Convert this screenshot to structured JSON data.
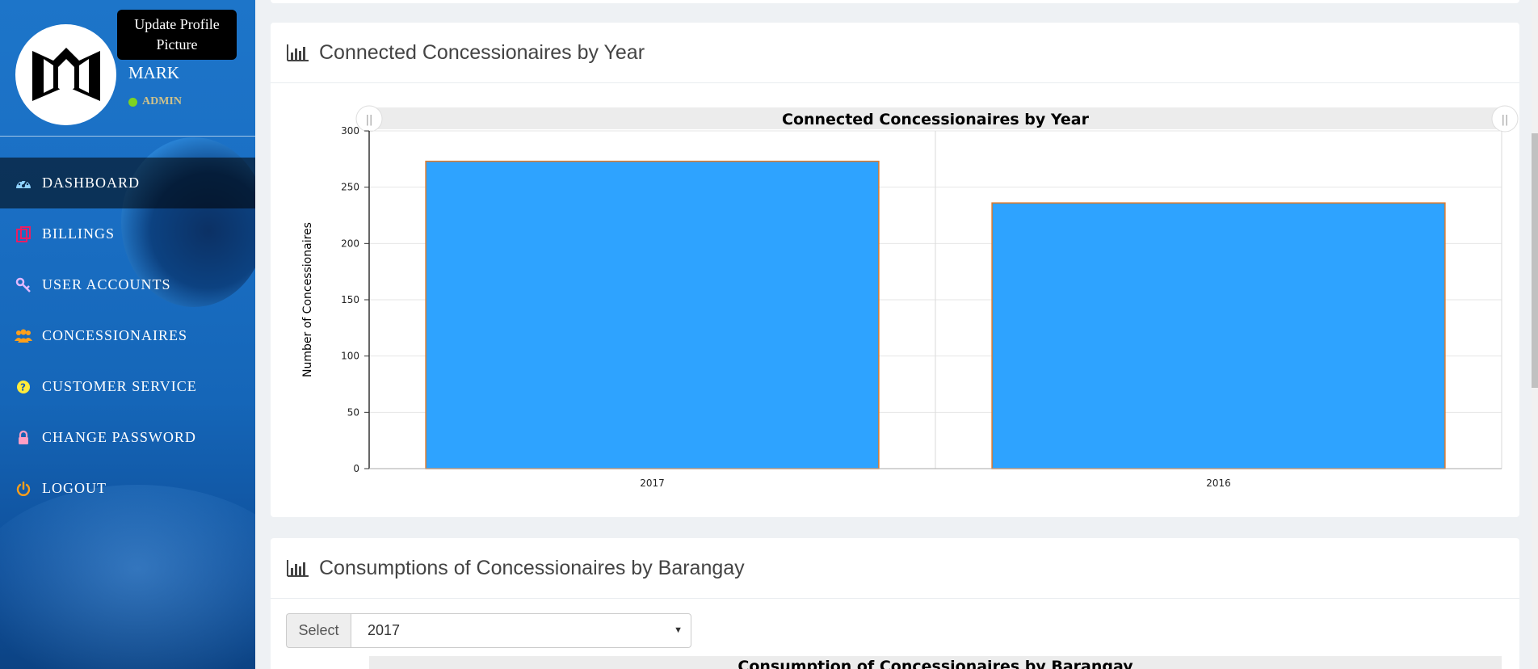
{
  "profile": {
    "update_button": "Update Profile Picture",
    "name": "MARK",
    "role": "ADMIN"
  },
  "nav": {
    "items": [
      {
        "label": "DASHBOARD",
        "icon": "dashboard-icon",
        "icon_color": "#8fd3ff",
        "active": true
      },
      {
        "label": "BILLINGS",
        "icon": "billing-icon",
        "icon_color": "#e91e63",
        "active": false
      },
      {
        "label": "USER ACCOUNTS",
        "icon": "key-icon",
        "icon_color": "#e1b8ff",
        "active": false
      },
      {
        "label": "CONCESSIONAIRES",
        "icon": "users-icon",
        "icon_color": "#ff9f1a",
        "active": false
      },
      {
        "label": "CUSTOMER SERVICE",
        "icon": "question-icon",
        "icon_color": "#ffeb3b",
        "active": false
      },
      {
        "label": "CHANGE PASSWORD",
        "icon": "lock-icon",
        "icon_color": "#ff9ec4",
        "active": false
      },
      {
        "label": "LOGOUT",
        "icon": "power-icon",
        "icon_color": "#ff9f1a",
        "active": false
      }
    ]
  },
  "card1": {
    "title": "Connected Concessionaires by Year"
  },
  "chart_data": {
    "type": "bar",
    "title": "Connected Concessionaires by Year",
    "xlabel": "",
    "ylabel": "Number of Concessionaires",
    "categories": [
      "2017",
      "2016"
    ],
    "values": [
      273,
      236
    ],
    "ylim": [
      0,
      300
    ],
    "yticks": [
      0,
      50,
      100,
      150,
      200,
      250,
      300
    ],
    "bar_color": "#2ea3ff",
    "bar_border": "#e07a2a",
    "grid": true
  },
  "card2": {
    "title": "Consumptions of Concessionaires by Barangay",
    "select_label": "Select",
    "select_value": "2017",
    "chart_title": "Consumption of Concessionaires by Barangay"
  }
}
